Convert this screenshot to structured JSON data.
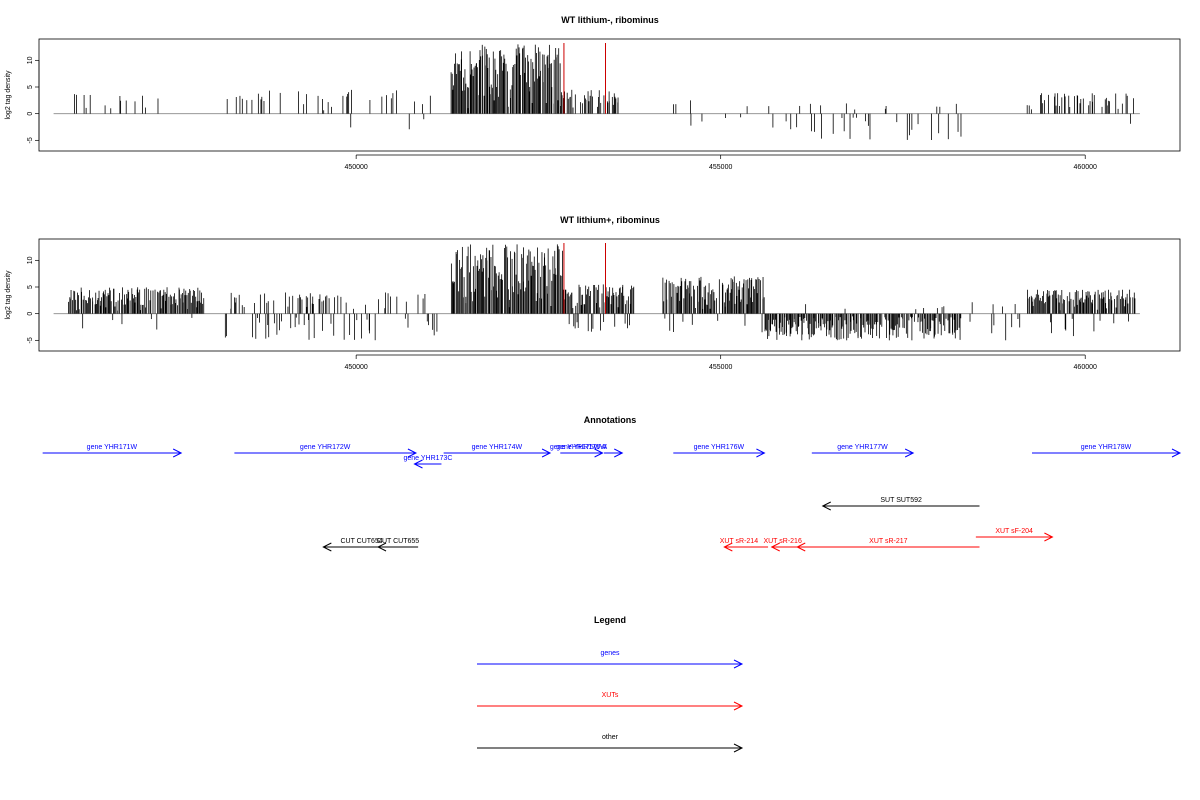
{
  "panels": [
    {
      "title": "WT lithium-, ribominus",
      "ylabel": "log2 tag density",
      "y_ticks": [
        "-5",
        "0",
        "5",
        "10"
      ],
      "x_ticks": [
        "450000",
        "455000",
        "460000"
      ]
    },
    {
      "title": "WT lithium+, ribominus",
      "ylabel": "log2 tag density",
      "y_ticks": [
        "-5",
        "0",
        "5",
        "10"
      ],
      "x_ticks": [
        "450000",
        "455000",
        "460000"
      ]
    }
  ],
  "annotations_title": "Annotations",
  "legend_title": "Legend",
  "legend_items": [
    {
      "label": "genes",
      "color": "#0000ff"
    },
    {
      "label": "XUTs",
      "color": "#ff0000"
    },
    {
      "label": "other",
      "color": "#000000"
    }
  ],
  "colors": {
    "genes": "#0000ff",
    "xut": "#ff0000",
    "other": "#000000",
    "marker": "#cc0000",
    "axis": "#000000"
  },
  "chart_data": [
    {
      "type": "bar",
      "title": "WT lithium-, ribominus",
      "ylabel": "log2 tag density",
      "xlim": [
        445650,
        461300
      ],
      "ylim": [
        -7,
        14
      ],
      "y_ticks": [
        -5,
        0,
        5,
        10
      ],
      "x_ticks": [
        450000,
        455000,
        460000
      ],
      "markers": [
        452850,
        453420
      ],
      "regions": [
        {
          "start": 446100,
          "end": 447400,
          "density": 0.15,
          "max": 3.5,
          "neg": 0,
          "seed": 11
        },
        {
          "start": 448200,
          "end": 450500,
          "density": 0.18,
          "max": 4.0,
          "neg": 0.1,
          "seed": 12
        },
        {
          "start": 450500,
          "end": 451200,
          "density": 0.12,
          "max": 4.0,
          "neg": 0.3,
          "seed": 13
        },
        {
          "start": 451300,
          "end": 452800,
          "density": 0.95,
          "max": 12.5,
          "neg": 0,
          "seed": 14
        },
        {
          "start": 452800,
          "end": 453600,
          "density": 0.6,
          "max": 4.0,
          "neg": 0,
          "seed": 15
        },
        {
          "start": 454300,
          "end": 455500,
          "density": 0.1,
          "max": 3.0,
          "neg": 0.5,
          "seed": 16
        },
        {
          "start": 455500,
          "end": 458500,
          "density": 0.12,
          "max": 1.5,
          "neg": 0.8,
          "seed": 17
        },
        {
          "start": 459200,
          "end": 460700,
          "density": 0.3,
          "max": 3.5,
          "neg": 0.1,
          "seed": 18
        }
      ]
    },
    {
      "type": "bar",
      "title": "WT lithium+, ribominus",
      "ylabel": "log2 tag density",
      "xlim": [
        445650,
        461300
      ],
      "ylim": [
        -7,
        14
      ],
      "y_ticks": [
        -5,
        0,
        5,
        10
      ],
      "x_ticks": [
        450000,
        455000,
        460000
      ],
      "markers": [
        452850,
        453420
      ],
      "regions": [
        {
          "start": 446050,
          "end": 447900,
          "density": 0.9,
          "max": 4.5,
          "neg": 0.05,
          "seed": 21
        },
        {
          "start": 448200,
          "end": 451200,
          "density": 0.35,
          "max": 3.5,
          "neg": 0.3,
          "seed": 22
        },
        {
          "start": 451300,
          "end": 452850,
          "density": 0.95,
          "max": 12.5,
          "neg": 0,
          "seed": 23
        },
        {
          "start": 452850,
          "end": 453800,
          "density": 0.9,
          "max": 5.0,
          "neg": 0.15,
          "seed": 24
        },
        {
          "start": 454200,
          "end": 455600,
          "density": 0.9,
          "max": 6.5,
          "neg": 0.05,
          "seed": 25
        },
        {
          "start": 455600,
          "end": 458300,
          "density": 0.9,
          "max": 1.5,
          "neg": 0.97,
          "seed": 26
        },
        {
          "start": 458300,
          "end": 459100,
          "density": 0.15,
          "max": 2.0,
          "neg": 0.4,
          "seed": 27
        },
        {
          "start": 459200,
          "end": 460700,
          "density": 0.85,
          "max": 4.0,
          "neg": 0.1,
          "seed": 28
        }
      ]
    }
  ],
  "features": [
    {
      "label": "gene YHR171W",
      "kind": "genes",
      "start": 445700,
      "end": 447600,
      "strand": "+",
      "row": 0
    },
    {
      "label": "gene YHR172W",
      "kind": "genes",
      "start": 448330,
      "end": 450820,
      "strand": "+",
      "row": 0
    },
    {
      "label": "gene YHR173C",
      "kind": "genes",
      "start": 450800,
      "end": 451170,
      "strand": "-",
      "row": 1
    },
    {
      "label": "gene YHR174W",
      "kind": "genes",
      "start": 451200,
      "end": 452660,
      "strand": "+",
      "row": 0
    },
    {
      "label": "gene YHR175W",
      "kind": "genes",
      "start": 452800,
      "end": 453380,
      "strand": "+",
      "row": 0
    },
    {
      "label": "gene YHR175W-A",
      "kind": "genes",
      "start": 453400,
      "end": 453650,
      "strand": "+",
      "row": 0
    },
    {
      "label": "gene YHR176W",
      "kind": "genes",
      "start": 454350,
      "end": 455600,
      "strand": "+",
      "row": 0
    },
    {
      "label": "gene YHR177W",
      "kind": "genes",
      "start": 456250,
      "end": 457640,
      "strand": "+",
      "row": 0
    },
    {
      "label": "gene YHR178W",
      "kind": "genes",
      "start": 459270,
      "end": 461300,
      "strand": "+",
      "row": 0
    },
    {
      "label": "SUT SUT592",
      "kind": "other",
      "start": 456400,
      "end": 458550,
      "strand": "-",
      "row": 4
    },
    {
      "label": "CUT CUT654",
      "kind": "other",
      "start": 449550,
      "end": 450600,
      "strand": "-",
      "row": 6
    },
    {
      "label": "CUT CUT655",
      "kind": "other",
      "start": 450300,
      "end": 450850,
      "strand": "-",
      "row": 6
    },
    {
      "label": "XUT sF-204",
      "kind": "xut",
      "start": 458500,
      "end": 459550,
      "strand": "+",
      "row": 5
    },
    {
      "label": "XUT sR-214",
      "kind": "xut",
      "start": 455050,
      "end": 455650,
      "strand": "-",
      "row": 6
    },
    {
      "label": "XUT sR-216",
      "kind": "xut",
      "start": 455700,
      "end": 456250,
      "strand": "-",
      "row": 6
    },
    {
      "label": "XUT sR-217",
      "kind": "xut",
      "start": 456050,
      "end": 458550,
      "strand": "-",
      "row": 6
    }
  ]
}
